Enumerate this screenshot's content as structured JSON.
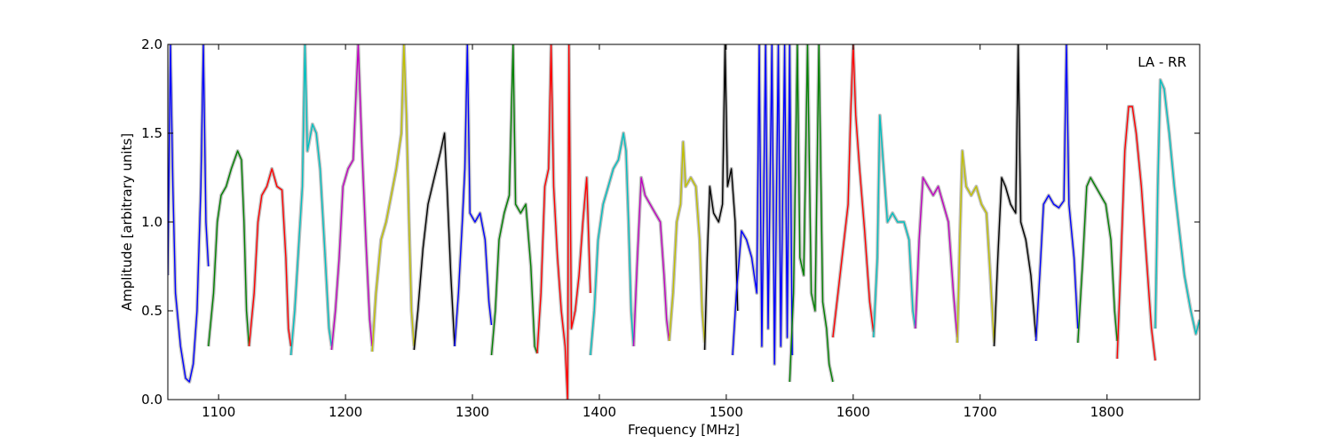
{
  "chart_data": {
    "type": "line",
    "title": "",
    "annotation": "LA - RR",
    "legend": "none",
    "xlabel": "Frequency [MHz]",
    "ylabel": "Amplitude [arbitrary units]",
    "xlim": [
      1060,
      1873
    ],
    "ylim": [
      0.0,
      2.0
    ],
    "xticks": [
      1100,
      1200,
      1300,
      1400,
      1500,
      1600,
      1700,
      1800
    ],
    "xtick_labels": [
      "1100",
      "1200",
      "1300",
      "1400",
      "1500",
      "1600",
      "1700",
      "1800"
    ],
    "yticks": [
      0.0,
      0.5,
      1.0,
      1.5,
      2.0
    ],
    "ytick_labels": [
      "0.0",
      "0.5",
      "1.0",
      "1.5",
      "2.0"
    ],
    "grid": false,
    "background_color": "#c0c0c0",
    "band_colors": [
      "#0000ff",
      "#008000",
      "#ff0000",
      "#00bfbf",
      "#bf00bf",
      "#bfbf00",
      "#000000"
    ],
    "bands": [
      {
        "color": "#0000ff",
        "points": [
          [
            1060,
            0.7
          ],
          [
            1062,
            2.0
          ],
          [
            1064,
            1.2
          ],
          [
            1066,
            0.6
          ],
          [
            1070,
            0.3
          ],
          [
            1074,
            0.12
          ],
          [
            1077,
            0.1
          ],
          [
            1080,
            0.2
          ],
          [
            1083,
            0.5
          ],
          [
            1086,
            1.2
          ],
          [
            1088,
            2.0
          ],
          [
            1090,
            1.0
          ],
          [
            1092,
            0.75
          ]
        ]
      },
      {
        "color": "#008000",
        "points": [
          [
            1092,
            0.3
          ],
          [
            1096,
            0.6
          ],
          [
            1099,
            1.0
          ],
          [
            1102,
            1.15
          ],
          [
            1106,
            1.2
          ],
          [
            1110,
            1.3
          ],
          [
            1115,
            1.4
          ],
          [
            1118,
            1.35
          ],
          [
            1120,
            1.0
          ],
          [
            1122,
            0.5
          ],
          [
            1124,
            0.3
          ]
        ]
      },
      {
        "color": "#ff0000",
        "points": [
          [
            1124,
            0.3
          ],
          [
            1128,
            0.6
          ],
          [
            1131,
            1.0
          ],
          [
            1134,
            1.15
          ],
          [
            1138,
            1.2
          ],
          [
            1142,
            1.3
          ],
          [
            1146,
            1.2
          ],
          [
            1150,
            1.18
          ],
          [
            1153,
            0.8
          ],
          [
            1155,
            0.4
          ],
          [
            1157,
            0.3
          ]
        ]
      },
      {
        "color": "#00bfbf",
        "points": [
          [
            1157,
            0.25
          ],
          [
            1160,
            0.5
          ],
          [
            1163,
            0.85
          ],
          [
            1166,
            1.2
          ],
          [
            1168,
            2.0
          ],
          [
            1170,
            1.4
          ],
          [
            1174,
            1.55
          ],
          [
            1177,
            1.5
          ],
          [
            1180,
            1.3
          ],
          [
            1184,
            0.8
          ],
          [
            1187,
            0.4
          ],
          [
            1189,
            0.3
          ]
        ]
      },
      {
        "color": "#bf00bf",
        "points": [
          [
            1189,
            0.28
          ],
          [
            1192,
            0.5
          ],
          [
            1195,
            0.8
          ],
          [
            1198,
            1.2
          ],
          [
            1202,
            1.3
          ],
          [
            1206,
            1.35
          ],
          [
            1210,
            2.0
          ],
          [
            1213,
            1.4
          ],
          [
            1216,
            0.9
          ],
          [
            1219,
            0.45
          ],
          [
            1221,
            0.3
          ]
        ]
      },
      {
        "color": "#bfbf00",
        "points": [
          [
            1221,
            0.27
          ],
          [
            1224,
            0.6
          ],
          [
            1228,
            0.9
          ],
          [
            1232,
            1.0
          ],
          [
            1236,
            1.15
          ],
          [
            1240,
            1.3
          ],
          [
            1244,
            1.5
          ],
          [
            1246,
            2.0
          ],
          [
            1248,
            1.6
          ],
          [
            1250,
            1.0
          ],
          [
            1252,
            0.5
          ],
          [
            1254,
            0.3
          ]
        ]
      },
      {
        "color": "#000000",
        "points": [
          [
            1254,
            0.28
          ],
          [
            1257,
            0.5
          ],
          [
            1261,
            0.85
          ],
          [
            1265,
            1.1
          ],
          [
            1270,
            1.25
          ],
          [
            1275,
            1.4
          ],
          [
            1278,
            1.5
          ],
          [
            1280,
            1.2
          ],
          [
            1283,
            0.7
          ],
          [
            1286,
            0.3
          ]
        ]
      },
      {
        "color": "#0000ff",
        "points": [
          [
            1286,
            0.3
          ],
          [
            1289,
            0.6
          ],
          [
            1292,
            1.0
          ],
          [
            1294,
            1.3
          ],
          [
            1296,
            2.0
          ],
          [
            1298,
            1.05
          ],
          [
            1302,
            1.0
          ],
          [
            1306,
            1.05
          ],
          [
            1310,
            0.9
          ],
          [
            1313,
            0.55
          ],
          [
            1315,
            0.42
          ]
        ]
      },
      {
        "color": "#008000",
        "points": [
          [
            1315,
            0.25
          ],
          [
            1318,
            0.5
          ],
          [
            1321,
            0.9
          ],
          [
            1325,
            1.05
          ],
          [
            1329,
            1.15
          ],
          [
            1332,
            2.0
          ],
          [
            1334,
            1.1
          ],
          [
            1338,
            1.05
          ],
          [
            1342,
            1.1
          ],
          [
            1346,
            0.75
          ],
          [
            1349,
            0.3
          ],
          [
            1351,
            0.26
          ]
        ]
      },
      {
        "color": "#ff0000",
        "points": [
          [
            1351,
            0.26
          ],
          [
            1354,
            0.6
          ],
          [
            1357,
            1.2
          ],
          [
            1360,
            1.3
          ],
          [
            1362,
            2.0
          ],
          [
            1364,
            1.2
          ],
          [
            1367,
            0.8
          ],
          [
            1370,
            0.5
          ],
          [
            1373,
            0.3
          ],
          [
            1375,
            0.0
          ],
          [
            1376,
            2.0
          ],
          [
            1378,
            0.4
          ],
          [
            1381,
            0.5
          ],
          [
            1384,
            0.7
          ],
          [
            1387,
            1.0
          ],
          [
            1390,
            1.25
          ],
          [
            1393,
            0.6
          ]
        ]
      },
      {
        "color": "#00bfbf",
        "points": [
          [
            1393,
            0.25
          ],
          [
            1396,
            0.5
          ],
          [
            1399,
            0.9
          ],
          [
            1403,
            1.1
          ],
          [
            1407,
            1.2
          ],
          [
            1411,
            1.3
          ],
          [
            1415,
            1.35
          ],
          [
            1419,
            1.5
          ],
          [
            1421,
            1.4
          ],
          [
            1423,
            1.0
          ],
          [
            1425,
            0.5
          ],
          [
            1427,
            0.3
          ]
        ]
      },
      {
        "color": "#bf00bf",
        "points": [
          [
            1427,
            0.3
          ],
          [
            1430,
            0.8
          ],
          [
            1433,
            1.25
          ],
          [
            1436,
            1.15
          ],
          [
            1440,
            1.1
          ],
          [
            1444,
            1.05
          ],
          [
            1448,
            1.0
          ],
          [
            1451,
            0.7
          ],
          [
            1453,
            0.45
          ],
          [
            1455,
            0.33
          ]
        ]
      },
      {
        "color": "#bfbf00",
        "points": [
          [
            1455,
            0.33
          ],
          [
            1458,
            0.6
          ],
          [
            1461,
            1.0
          ],
          [
            1464,
            1.1
          ],
          [
            1466,
            1.45
          ],
          [
            1468,
            1.2
          ],
          [
            1472,
            1.25
          ],
          [
            1476,
            1.2
          ],
          [
            1479,
            0.9
          ],
          [
            1481,
            0.5
          ],
          [
            1483,
            0.32
          ]
        ]
      },
      {
        "color": "#000000",
        "points": [
          [
            1483,
            0.28
          ],
          [
            1485,
            0.8
          ],
          [
            1487,
            1.2
          ],
          [
            1490,
            1.05
          ],
          [
            1494,
            1.0
          ],
          [
            1497,
            1.1
          ],
          [
            1499,
            2.0
          ],
          [
            1501,
            1.2
          ],
          [
            1504,
            1.3
          ],
          [
            1507,
            1.0
          ],
          [
            1509,
            0.5
          ]
        ]
      },
      {
        "color": "#0000ff",
        "points": [
          [
            1505,
            0.25
          ],
          [
            1508,
            0.6
          ],
          [
            1512,
            0.95
          ],
          [
            1516,
            0.9
          ],
          [
            1520,
            0.8
          ],
          [
            1524,
            0.6
          ],
          [
            1526,
            2.0
          ],
          [
            1528,
            0.3
          ],
          [
            1531,
            2.0
          ],
          [
            1533,
            0.4
          ],
          [
            1536,
            2.0
          ],
          [
            1538,
            0.2
          ],
          [
            1541,
            2.0
          ],
          [
            1543,
            0.3
          ],
          [
            1546,
            2.0
          ],
          [
            1548,
            0.35
          ],
          [
            1550,
            2.0
          ],
          [
            1552,
            0.25
          ]
        ]
      },
      {
        "color": "#008000",
        "points": [
          [
            1550,
            0.1
          ],
          [
            1553,
            0.6
          ],
          [
            1556,
            2.0
          ],
          [
            1558,
            0.8
          ],
          [
            1561,
            0.7
          ],
          [
            1564,
            2.0
          ],
          [
            1567,
            0.6
          ],
          [
            1570,
            0.5
          ],
          [
            1573,
            2.0
          ],
          [
            1576,
            0.55
          ],
          [
            1579,
            0.4
          ],
          [
            1581,
            0.2
          ],
          [
            1584,
            0.1
          ]
        ]
      },
      {
        "color": "#ff0000",
        "points": [
          [
            1584,
            0.35
          ],
          [
            1588,
            0.6
          ],
          [
            1592,
            0.85
          ],
          [
            1596,
            1.1
          ],
          [
            1598,
            1.6
          ],
          [
            1600,
            2.0
          ],
          [
            1602,
            1.6
          ],
          [
            1605,
            1.3
          ],
          [
            1609,
            0.95
          ],
          [
            1613,
            0.55
          ],
          [
            1616,
            0.38
          ]
        ]
      },
      {
        "color": "#00bfbf",
        "points": [
          [
            1616,
            0.35
          ],
          [
            1619,
            0.8
          ],
          [
            1621,
            1.6
          ],
          [
            1624,
            1.3
          ],
          [
            1627,
            1.0
          ],
          [
            1631,
            1.05
          ],
          [
            1635,
            1.0
          ],
          [
            1640,
            1.0
          ],
          [
            1644,
            0.9
          ],
          [
            1647,
            0.5
          ],
          [
            1649,
            0.4
          ]
        ]
      },
      {
        "color": "#bf00bf",
        "points": [
          [
            1649,
            0.4
          ],
          [
            1652,
            0.9
          ],
          [
            1655,
            1.25
          ],
          [
            1659,
            1.2
          ],
          [
            1663,
            1.15
          ],
          [
            1667,
            1.2
          ],
          [
            1671,
            1.1
          ],
          [
            1675,
            1.0
          ],
          [
            1679,
            0.6
          ],
          [
            1682,
            0.35
          ]
        ]
      },
      {
        "color": "#bfbf00",
        "points": [
          [
            1682,
            0.32
          ],
          [
            1684,
            0.9
          ],
          [
            1686,
            1.4
          ],
          [
            1689,
            1.2
          ],
          [
            1693,
            1.15
          ],
          [
            1697,
            1.2
          ],
          [
            1701,
            1.1
          ],
          [
            1705,
            1.05
          ],
          [
            1708,
            0.7
          ],
          [
            1711,
            0.32
          ]
        ]
      },
      {
        "color": "#000000",
        "points": [
          [
            1711,
            0.3
          ],
          [
            1714,
            0.8
          ],
          [
            1717,
            1.25
          ],
          [
            1720,
            1.2
          ],
          [
            1724,
            1.1
          ],
          [
            1728,
            1.05
          ],
          [
            1730,
            2.0
          ],
          [
            1732,
            1.0
          ],
          [
            1736,
            0.9
          ],
          [
            1740,
            0.7
          ],
          [
            1744,
            0.35
          ]
        ]
      },
      {
        "color": "#0000ff",
        "points": [
          [
            1744,
            0.33
          ],
          [
            1747,
            0.7
          ],
          [
            1750,
            1.1
          ],
          [
            1754,
            1.15
          ],
          [
            1758,
            1.1
          ],
          [
            1762,
            1.08
          ],
          [
            1766,
            1.12
          ],
          [
            1768,
            2.0
          ],
          [
            1770,
            1.1
          ],
          [
            1774,
            0.8
          ],
          [
            1777,
            0.4
          ]
        ]
      },
      {
        "color": "#008000",
        "points": [
          [
            1777,
            0.32
          ],
          [
            1781,
            0.8
          ],
          [
            1784,
            1.2
          ],
          [
            1787,
            1.25
          ],
          [
            1791,
            1.2
          ],
          [
            1795,
            1.15
          ],
          [
            1799,
            1.1
          ],
          [
            1803,
            0.9
          ],
          [
            1806,
            0.5
          ],
          [
            1808,
            0.33
          ]
        ]
      },
      {
        "color": "#ff0000",
        "points": [
          [
            1808,
            0.23
          ],
          [
            1811,
            0.8
          ],
          [
            1814,
            1.4
          ],
          [
            1817,
            1.65
          ],
          [
            1820,
            1.65
          ],
          [
            1823,
            1.5
          ],
          [
            1827,
            1.2
          ],
          [
            1831,
            0.8
          ],
          [
            1835,
            0.4
          ],
          [
            1838,
            0.22
          ]
        ]
      },
      {
        "color": "#00bfbf",
        "points": [
          [
            1838,
            0.4
          ],
          [
            1840,
            1.2
          ],
          [
            1842,
            1.8
          ],
          [
            1845,
            1.75
          ],
          [
            1849,
            1.5
          ],
          [
            1853,
            1.2
          ],
          [
            1857,
            0.95
          ],
          [
            1861,
            0.7
          ],
          [
            1866,
            0.5
          ],
          [
            1870,
            0.37
          ],
          [
            1873,
            0.45
          ]
        ]
      }
    ]
  }
}
